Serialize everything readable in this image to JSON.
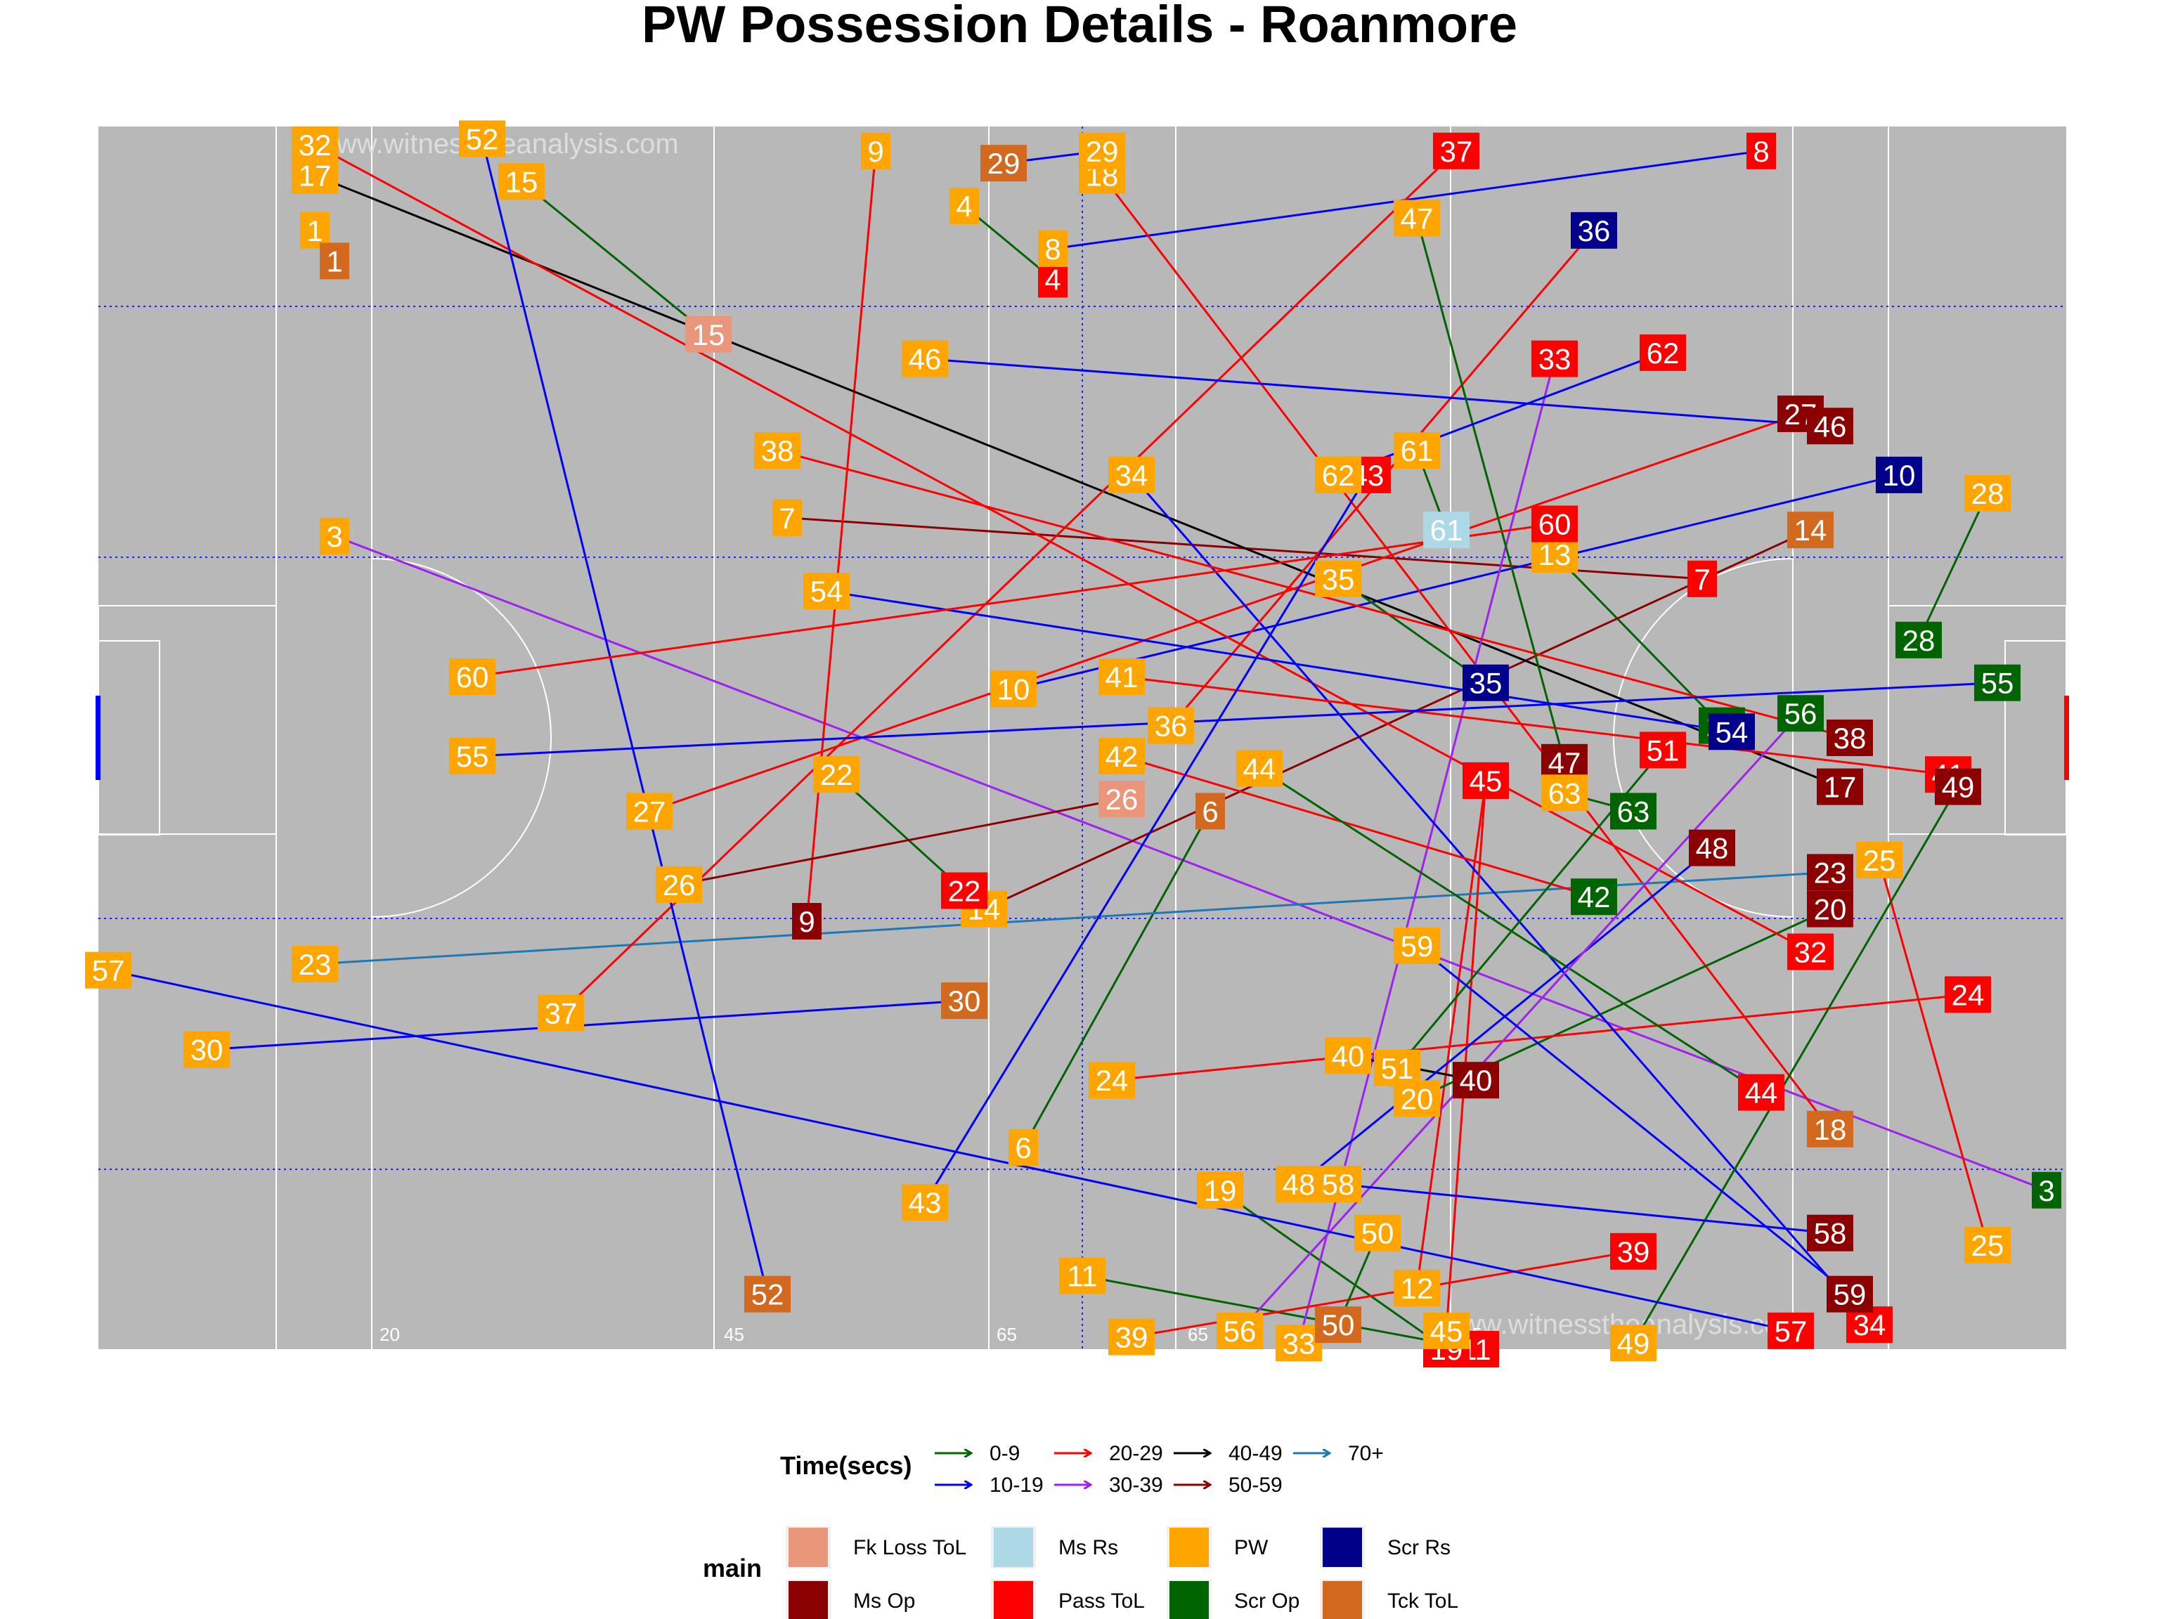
{
  "chart_data": {
    "type": "scatter",
    "title": "PW Possession Details - Roanmore",
    "watermark": "www.witnesstheanalysis.com",
    "yard_labels": [
      "20",
      "45",
      "65",
      "65",
      "45"
    ],
    "time_legend": {
      "title": "Time(secs)",
      "items": [
        {
          "label": "0-9",
          "color": "#006400"
        },
        {
          "label": "10-19",
          "color": "#0000ff"
        },
        {
          "label": "20-29",
          "color": "#ff0000"
        },
        {
          "label": "30-39",
          "color": "#a020f0"
        },
        {
          "label": "40-49",
          "color": "#000000"
        },
        {
          "label": "50-59",
          "color": "#8b0000"
        },
        {
          "label": "70+",
          "color": "#1f78b4"
        }
      ]
    },
    "main_legend": {
      "title": "main",
      "items": [
        {
          "label": "Fk Loss ToL",
          "color": "#e9967a"
        },
        {
          "label": "Ms Rs",
          "color": "#add8e6"
        },
        {
          "label": "PW",
          "color": "#ffa500"
        },
        {
          "label": "Scr Rs",
          "color": "#00008b"
        },
        {
          "label": "Ms Op",
          "color": "#8b0000"
        },
        {
          "label": "Pass ToL",
          "color": "#ff0000"
        },
        {
          "label": "Scr Op",
          "color": "#006400"
        },
        {
          "label": "Tck ToL",
          "color": "#d2691e"
        }
      ]
    },
    "possessions": [
      {
        "id": "1",
        "from": [
          11,
          91.5
        ],
        "to": [
          12,
          89
        ],
        "time": "10-19",
        "end": "Tck ToL"
      },
      {
        "id": "3",
        "from": [
          12,
          66.5
        ],
        "to": [
          99,
          13
        ],
        "time": "30-39",
        "end": "Scr Op"
      },
      {
        "id": "4",
        "from": [
          44,
          93.5
        ],
        "to": [
          48.5,
          87.5
        ],
        "time": "0-9",
        "end": "Pass ToL"
      },
      {
        "id": "6",
        "from": [
          47,
          16.5
        ],
        "to": [
          56.5,
          44
        ],
        "time": "0-9",
        "end": "Tck ToL"
      },
      {
        "id": "7",
        "from": [
          35,
          68
        ],
        "to": [
          81.5,
          63
        ],
        "time": "50-59",
        "end": "Pass ToL"
      },
      {
        "id": "8",
        "from": [
          48.5,
          90
        ],
        "to": [
          84.5,
          98
        ],
        "time": "10-19",
        "end": "Pass ToL"
      },
      {
        "id": "9",
        "from": [
          39.5,
          98
        ],
        "to": [
          36,
          35
        ],
        "time": "20-29",
        "end": "Ms Op"
      },
      {
        "id": "10",
        "from": [
          46.5,
          54
        ],
        "to": [
          91.5,
          71.5
        ],
        "time": "10-19",
        "end": "Scr Rs"
      },
      {
        "id": "11",
        "from": [
          50,
          6
        ],
        "to": [
          70,
          0
        ],
        "time": "0-9",
        "end": "Pass ToL"
      },
      {
        "id": "12",
        "from": [
          67,
          5
        ],
        "to": [
          70.5,
          46.5
        ],
        "time": "20-29",
        "end": "Ms Op"
      },
      {
        "id": "13",
        "from": [
          74,
          65
        ],
        "to": [
          82.5,
          51
        ],
        "time": "0-9",
        "end": "Scr Op"
      },
      {
        "id": "14",
        "from": [
          45,
          36
        ],
        "to": [
          87,
          67
        ],
        "time": "50-59",
        "end": "Tck ToL"
      },
      {
        "id": "15",
        "from": [
          21.5,
          95.5
        ],
        "to": [
          31,
          83
        ],
        "time": "0-9",
        "end": "Fk Loss ToL"
      },
      {
        "id": "17",
        "from": [
          11,
          96
        ],
        "to": [
          88.5,
          46
        ],
        "time": "40-49",
        "end": "Ms Op"
      },
      {
        "id": "18",
        "from": [
          51,
          96
        ],
        "to": [
          88,
          18
        ],
        "time": "20-29",
        "end": "Tck ToL"
      },
      {
        "id": "19",
        "from": [
          57,
          13
        ],
        "to": [
          68.5,
          0
        ],
        "time": "0-9",
        "end": "Pass ToL"
      },
      {
        "id": "20",
        "from": [
          67,
          20.5
        ],
        "to": [
          88,
          36
        ],
        "time": "0-9",
        "end": "Ms Op"
      },
      {
        "id": "22",
        "from": [
          37.5,
          47
        ],
        "to": [
          44,
          37.5
        ],
        "time": "0-9",
        "end": "Pass ToL"
      },
      {
        "id": "23",
        "from": [
          11,
          31.5
        ],
        "to": [
          88,
          39
        ],
        "time": "70+",
        "end": "Ms Op"
      },
      {
        "id": "24",
        "from": [
          51.5,
          22
        ],
        "to": [
          95,
          29
        ],
        "time": "20-29",
        "end": "Pass ToL"
      },
      {
        "id": "25",
        "from": [
          96,
          8.5
        ],
        "to": [
          90.5,
          40
        ],
        "time": "20-29",
        "end": "PW"
      },
      {
        "id": "26",
        "from": [
          29.5,
          38
        ],
        "to": [
          52,
          45
        ],
        "time": "50-59",
        "end": "Fk Loss ToL"
      },
      {
        "id": "27",
        "from": [
          28,
          44
        ],
        "to": [
          86.5,
          76.5
        ],
        "time": "20-29",
        "end": "Ms Op"
      },
      {
        "id": "28",
        "from": [
          96,
          70
        ],
        "to": [
          92.5,
          58
        ],
        "time": "0-9",
        "end": "Scr Op"
      },
      {
        "id": "29",
        "from": [
          51,
          98
        ],
        "to": [
          46,
          97
        ],
        "time": "10-19",
        "end": "Tck ToL"
      },
      {
        "id": "30",
        "from": [
          5.5,
          24.5
        ],
        "to": [
          44,
          28.5
        ],
        "time": "10-19",
        "end": "Tck ToL"
      },
      {
        "id": "32",
        "from": [
          11,
          98.5
        ],
        "to": [
          87,
          32.5
        ],
        "time": "20-29",
        "end": "Pass ToL"
      },
      {
        "id": "33",
        "from": [
          61,
          0.5
        ],
        "to": [
          74,
          81
        ],
        "time": "30-39",
        "end": "Pass ToL"
      },
      {
        "id": "34",
        "from": [
          52.5,
          71.5
        ],
        "to": [
          90,
          2
        ],
        "time": "10-19",
        "end": "Pass ToL"
      },
      {
        "id": "35",
        "from": [
          63,
          63
        ],
        "to": [
          70.5,
          54.5
        ],
        "time": "0-9",
        "end": "Scr Rs"
      },
      {
        "id": "36",
        "from": [
          54.5,
          51
        ],
        "to": [
          76,
          91.5
        ],
        "time": "20-29",
        "end": "Scr Rs"
      },
      {
        "id": "37",
        "from": [
          23.5,
          27.5
        ],
        "to": [
          69,
          98
        ],
        "time": "20-29",
        "end": "Pass ToL"
      },
      {
        "id": "38",
        "from": [
          34.5,
          73.5
        ],
        "to": [
          89,
          50
        ],
        "time": "20-29",
        "end": "Ms Op"
      },
      {
        "id": "39",
        "from": [
          52.5,
          1
        ],
        "to": [
          78,
          8
        ],
        "time": "20-29",
        "end": "Pass ToL"
      },
      {
        "id": "40",
        "from": [
          63.5,
          24
        ],
        "to": [
          70,
          22
        ],
        "time": "40-49",
        "end": "Ms Op"
      },
      {
        "id": "41",
        "from": [
          52,
          55
        ],
        "to": [
          94,
          47
        ],
        "time": "20-29",
        "end": "Pass ToL"
      },
      {
        "id": "42",
        "from": [
          52,
          48.5
        ],
        "to": [
          76,
          37
        ],
        "time": "20-29",
        "end": "Scr Op"
      },
      {
        "id": "43",
        "from": [
          42,
          12
        ],
        "to": [
          64.5,
          71.5
        ],
        "time": "10-19",
        "end": "Pass ToL"
      },
      {
        "id": "44",
        "from": [
          59,
          47.5
        ],
        "to": [
          84.5,
          21
        ],
        "time": "0-9",
        "end": "Pass ToL"
      },
      {
        "id": "45",
        "from": [
          68.5,
          1.5
        ],
        "to": [
          70.5,
          46.5
        ],
        "time": "20-29",
        "end": "Pass ToL"
      },
      {
        "id": "46",
        "from": [
          42,
          81
        ],
        "to": [
          88,
          75.5
        ],
        "time": "10-19",
        "end": "Ms Op"
      },
      {
        "id": "47",
        "from": [
          67,
          92.5
        ],
        "to": [
          74.5,
          48
        ],
        "time": "0-9",
        "end": "Ms Op"
      },
      {
        "id": "48",
        "from": [
          61,
          13.5
        ],
        "to": [
          82,
          41
        ],
        "time": "10-19",
        "end": "Ms Op"
      },
      {
        "id": "49",
        "from": [
          78,
          0.5
        ],
        "to": [
          94.5,
          46
        ],
        "time": "0-9",
        "end": "Ms Op"
      },
      {
        "id": "50",
        "from": [
          65,
          9.5
        ],
        "to": [
          63,
          2
        ],
        "time": "0-9",
        "end": "Tck ToL"
      },
      {
        "id": "51",
        "from": [
          66,
          23
        ],
        "to": [
          79.5,
          49
        ],
        "time": "0-9",
        "end": "Pass ToL"
      },
      {
        "id": "52",
        "from": [
          19.5,
          99
        ],
        "to": [
          34,
          4.5
        ],
        "time": "10-19",
        "end": "Tck ToL"
      },
      {
        "id": "54",
        "from": [
          37,
          62
        ],
        "to": [
          83,
          50.5
        ],
        "time": "10-19",
        "end": "Scr Rs"
      },
      {
        "id": "55",
        "from": [
          19,
          48.5
        ],
        "to": [
          96.5,
          54.5
        ],
        "time": "10-19",
        "end": "Scr Op"
      },
      {
        "id": "56",
        "from": [
          58,
          1.5
        ],
        "to": [
          86.5,
          52
        ],
        "time": "30-39",
        "end": "Scr Op"
      },
      {
        "id": "57",
        "from": [
          0.5,
          31
        ],
        "to": [
          86,
          1.5
        ],
        "time": "10-19",
        "end": "Pass ToL"
      },
      {
        "id": "58",
        "from": [
          63,
          13.5
        ],
        "to": [
          88,
          9.5
        ],
        "time": "10-19",
        "end": "Ms Op"
      },
      {
        "id": "59",
        "from": [
          67,
          33
        ],
        "to": [
          89,
          4.5
        ],
        "time": "10-19",
        "end": "Ms Op"
      },
      {
        "id": "60",
        "from": [
          19,
          55
        ],
        "to": [
          74,
          67.5
        ],
        "time": "20-29",
        "end": "Pass ToL"
      },
      {
        "id": "61",
        "from": [
          67,
          73.5
        ],
        "to": [
          68.5,
          67
        ],
        "time": "0-9",
        "end": "Ms Rs"
      },
      {
        "id": "62",
        "from": [
          63,
          71.5
        ],
        "to": [
          79.5,
          81.5
        ],
        "time": "10-19",
        "end": "Pass ToL"
      },
      {
        "id": "63",
        "from": [
          74.5,
          45.5
        ],
        "to": [
          78,
          44
        ],
        "time": "0-9",
        "end": "Scr Op"
      }
    ]
  }
}
